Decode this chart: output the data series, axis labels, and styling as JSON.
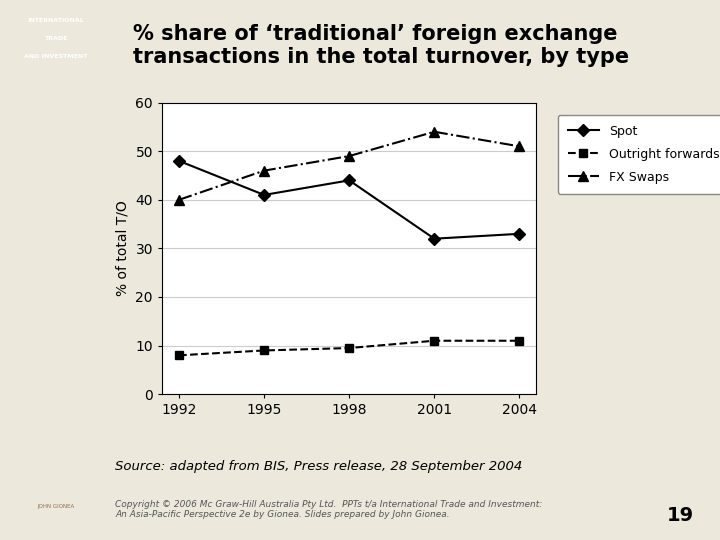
{
  "title": "% share of ‘traditional’ foreign exchange\ntransactions in the total turnover, by type",
  "source_text": "Source: adapted from BIS, Press release, 28 September 2004",
  "copyright_text": "Copyright © 2006 Mc Graw-Hill Australia Pty Ltd.  PPTs t/a International Trade and Investment:\nAn Asia-Pacific Perspective 2e by Gionea. Slides prepared by John Gionea.",
  "page_number": "19",
  "years": [
    1992,
    1995,
    1998,
    2001,
    2004
  ],
  "spot": [
    48,
    41,
    44,
    32,
    33
  ],
  "outright_forwards": [
    8,
    9,
    9.5,
    11,
    11
  ],
  "fx_swaps": [
    40,
    46,
    49,
    54,
    51
  ],
  "ylabel": "% of total T/O",
  "ylim": [
    0,
    60
  ],
  "yticks": [
    0,
    10,
    20,
    30,
    40,
    50,
    60
  ],
  "bg_color": "#ede8dc",
  "plot_bg": "#ffffff",
  "line_color": "#000000",
  "grid_color": "#cccccc",
  "left_panel_top": "#c8b882",
  "left_panel_mid": "#8a7a5a",
  "left_panel_bot": "#c8b882"
}
